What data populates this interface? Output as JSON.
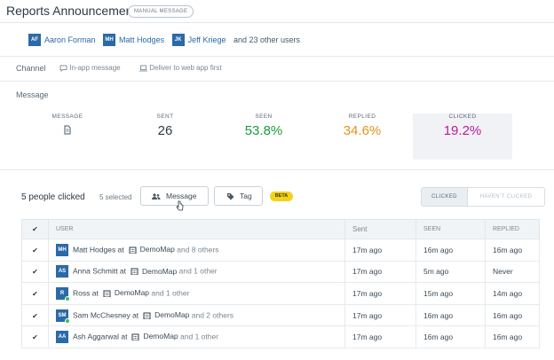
{
  "header": {
    "title": "Reports Announcement",
    "badge": "MANUAL MESSAGE"
  },
  "recipients": {
    "users": [
      {
        "initials": "AF",
        "name": "Aaron Forman"
      },
      {
        "initials": "MH",
        "name": "Matt Hodges"
      },
      {
        "initials": "JK",
        "name": "Jeff Kriege"
      }
    ],
    "more_text": "and 23 other users"
  },
  "channel": {
    "label": "Channel",
    "option1": "In-app message",
    "option2": "Deliver to web app first"
  },
  "message_section": {
    "label": "Message",
    "stats": [
      {
        "label": "MESSAGE",
        "value": ""
      },
      {
        "label": "SENT",
        "value": "26"
      },
      {
        "label": "SEEN",
        "value": "53.8%"
      },
      {
        "label": "REPLIED",
        "value": "34.6%"
      },
      {
        "label": "CLICKED",
        "value": "19.2%"
      }
    ]
  },
  "toolbar": {
    "people_heading": "5 people clicked",
    "selected": "5 selected",
    "message_button": "Message",
    "tag_button": "Tag",
    "beta": "BETA",
    "filter_clicked": "CLICKED",
    "filter_not_clicked": "HAVEN'T CLICKED"
  },
  "table": {
    "headers": {
      "check": "✔",
      "user": "USER",
      "sent": "Sent",
      "seen": "SEEN",
      "replied": "REPLIED"
    },
    "rows": [
      {
        "initials": "MH",
        "name": "Matt Hodges at",
        "company": "DemoMap",
        "others": "and 8 others",
        "sent": "17m ago",
        "seen": "16m ago",
        "replied": "16m ago",
        "online": false
      },
      {
        "initials": "AS",
        "name": "Anna Schmitt at",
        "company": "DemoMap",
        "others": "and 1 other",
        "sent": "17m ago",
        "seen": "5m ago",
        "replied": "Never",
        "online": false
      },
      {
        "initials": "R",
        "name": "Ross at",
        "company": "DemoMap",
        "others": "and 1 other",
        "sent": "17m ago",
        "seen": "15m ago",
        "replied": "14m ago",
        "online": true
      },
      {
        "initials": "SM",
        "name": "Sam McChesney at",
        "company": "DemoMap",
        "others": "and 2 others",
        "sent": "17m ago",
        "seen": "16m ago",
        "replied": "16m ago",
        "online": true
      },
      {
        "initials": "AA",
        "name": "Ash Aggarwal at",
        "company": "DemoMap",
        "others": "and 1 other",
        "sent": "17m ago",
        "seen": "16m ago",
        "replied": "16m ago",
        "online": false
      }
    ]
  },
  "colors": {
    "seen": "#1a9a3a",
    "replied": "#e8901a",
    "clicked": "#c2189a",
    "avatar": "#2a6aa8"
  }
}
